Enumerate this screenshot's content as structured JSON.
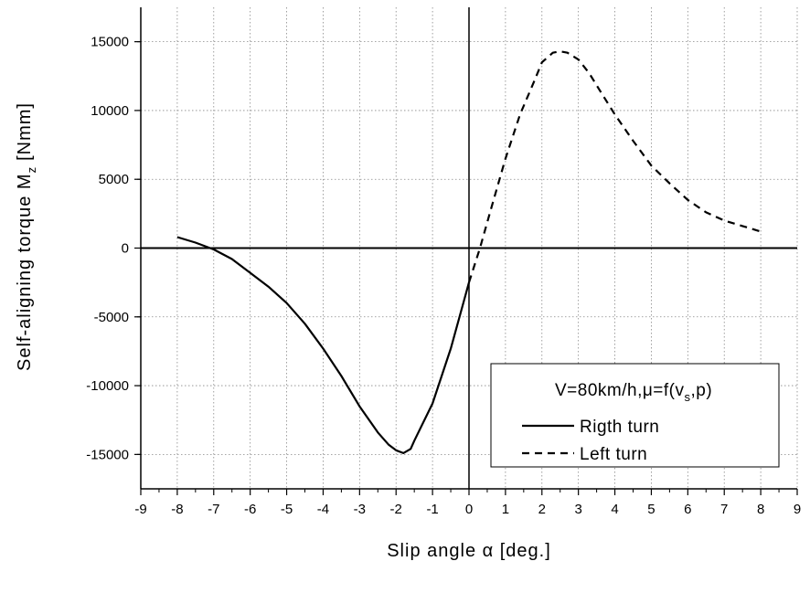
{
  "chart_data": {
    "type": "line",
    "xlabel": "Slip angle α [deg.]",
    "ylabel": "Self-aligning torque M",
    "ylabel_sub": "z",
    "ylabel_unit": "[Nmm]",
    "xlim": [
      -9,
      9
    ],
    "ylim": [
      -17500,
      17500
    ],
    "xticks": [
      -9,
      -8,
      -7,
      -6,
      -5,
      -4,
      -3,
      -2,
      -1,
      0,
      1,
      2,
      3,
      4,
      5,
      6,
      7,
      8,
      9
    ],
    "yticks": [
      -15000,
      -10000,
      -5000,
      0,
      5000,
      10000,
      15000
    ],
    "grid": true,
    "legend": {
      "placement": "bottom-right",
      "title_main": "V=80km/h,μ=f(v",
      "title_sub": "s",
      "title_end": ",p)"
    },
    "series": [
      {
        "name": "Rigth turn",
        "style": "solid",
        "color": "#000000",
        "x": [
          -8.0,
          -7.5,
          -7.0,
          -6.5,
          -6.0,
          -5.5,
          -5.0,
          -4.5,
          -4.0,
          -3.5,
          -3.0,
          -2.5,
          -2.2,
          -2.0,
          -1.8,
          -1.6,
          -1.5,
          -1.0,
          -0.5,
          0.0
        ],
        "y": [
          800,
          400,
          -100,
          -800,
          -1800,
          -2800,
          -4000,
          -5500,
          -7300,
          -9300,
          -11500,
          -13400,
          -14300,
          -14700,
          -14900,
          -14600,
          -14000,
          -11300,
          -7300,
          -2500
        ]
      },
      {
        "name": "Left turn",
        "style": "dashed",
        "color": "#000000",
        "x": [
          0.0,
          0.3,
          0.6,
          1.0,
          1.4,
          1.8,
          2.0,
          2.3,
          2.5,
          2.7,
          3.0,
          3.3,
          3.6,
          4.0,
          4.5,
          5.0,
          5.5,
          6.0,
          6.5,
          7.0,
          7.5,
          8.0
        ],
        "y": [
          -2500,
          0,
          2800,
          6500,
          9700,
          12200,
          13500,
          14200,
          14300,
          14200,
          13700,
          12700,
          11400,
          9700,
          7800,
          6000,
          4700,
          3500,
          2600,
          2000,
          1600,
          1200
        ]
      }
    ]
  }
}
